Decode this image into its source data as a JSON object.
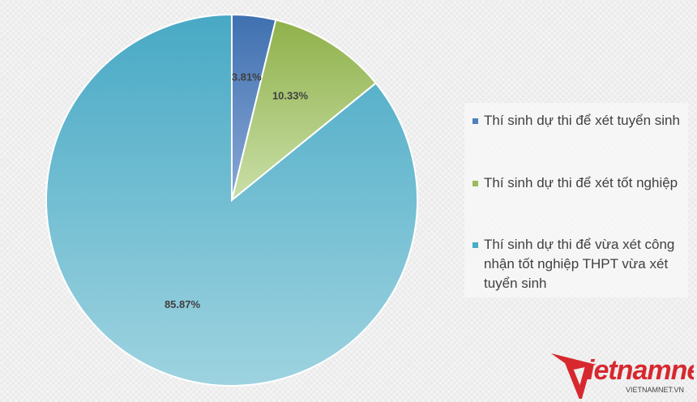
{
  "chart_data": {
    "type": "pie",
    "start_angle_deg": 0,
    "direction": "clockwise",
    "slices": [
      {
        "label": "Thí sinh dự thi để xét tuyển sinh",
        "value": 3.81,
        "display": "3.81%",
        "color": "#4f81bd"
      },
      {
        "label": "Thí sinh dự thi để xét tốt nghiệp",
        "value": 10.33,
        "display": "10.33%",
        "color": "#9bbb59"
      },
      {
        "label": "Thí sinh dự thi để vừa xét công nhận tốt nghiệp THPT vừa xét tuyển sinh",
        "value": 85.87,
        "display": "85.87%",
        "color": "#4bacc6"
      }
    ],
    "legend_position": "right"
  },
  "watermark": {
    "brand": "vietnamnet",
    "url": "VIETNAMNET.VN",
    "brand_color": "#d7282f"
  }
}
